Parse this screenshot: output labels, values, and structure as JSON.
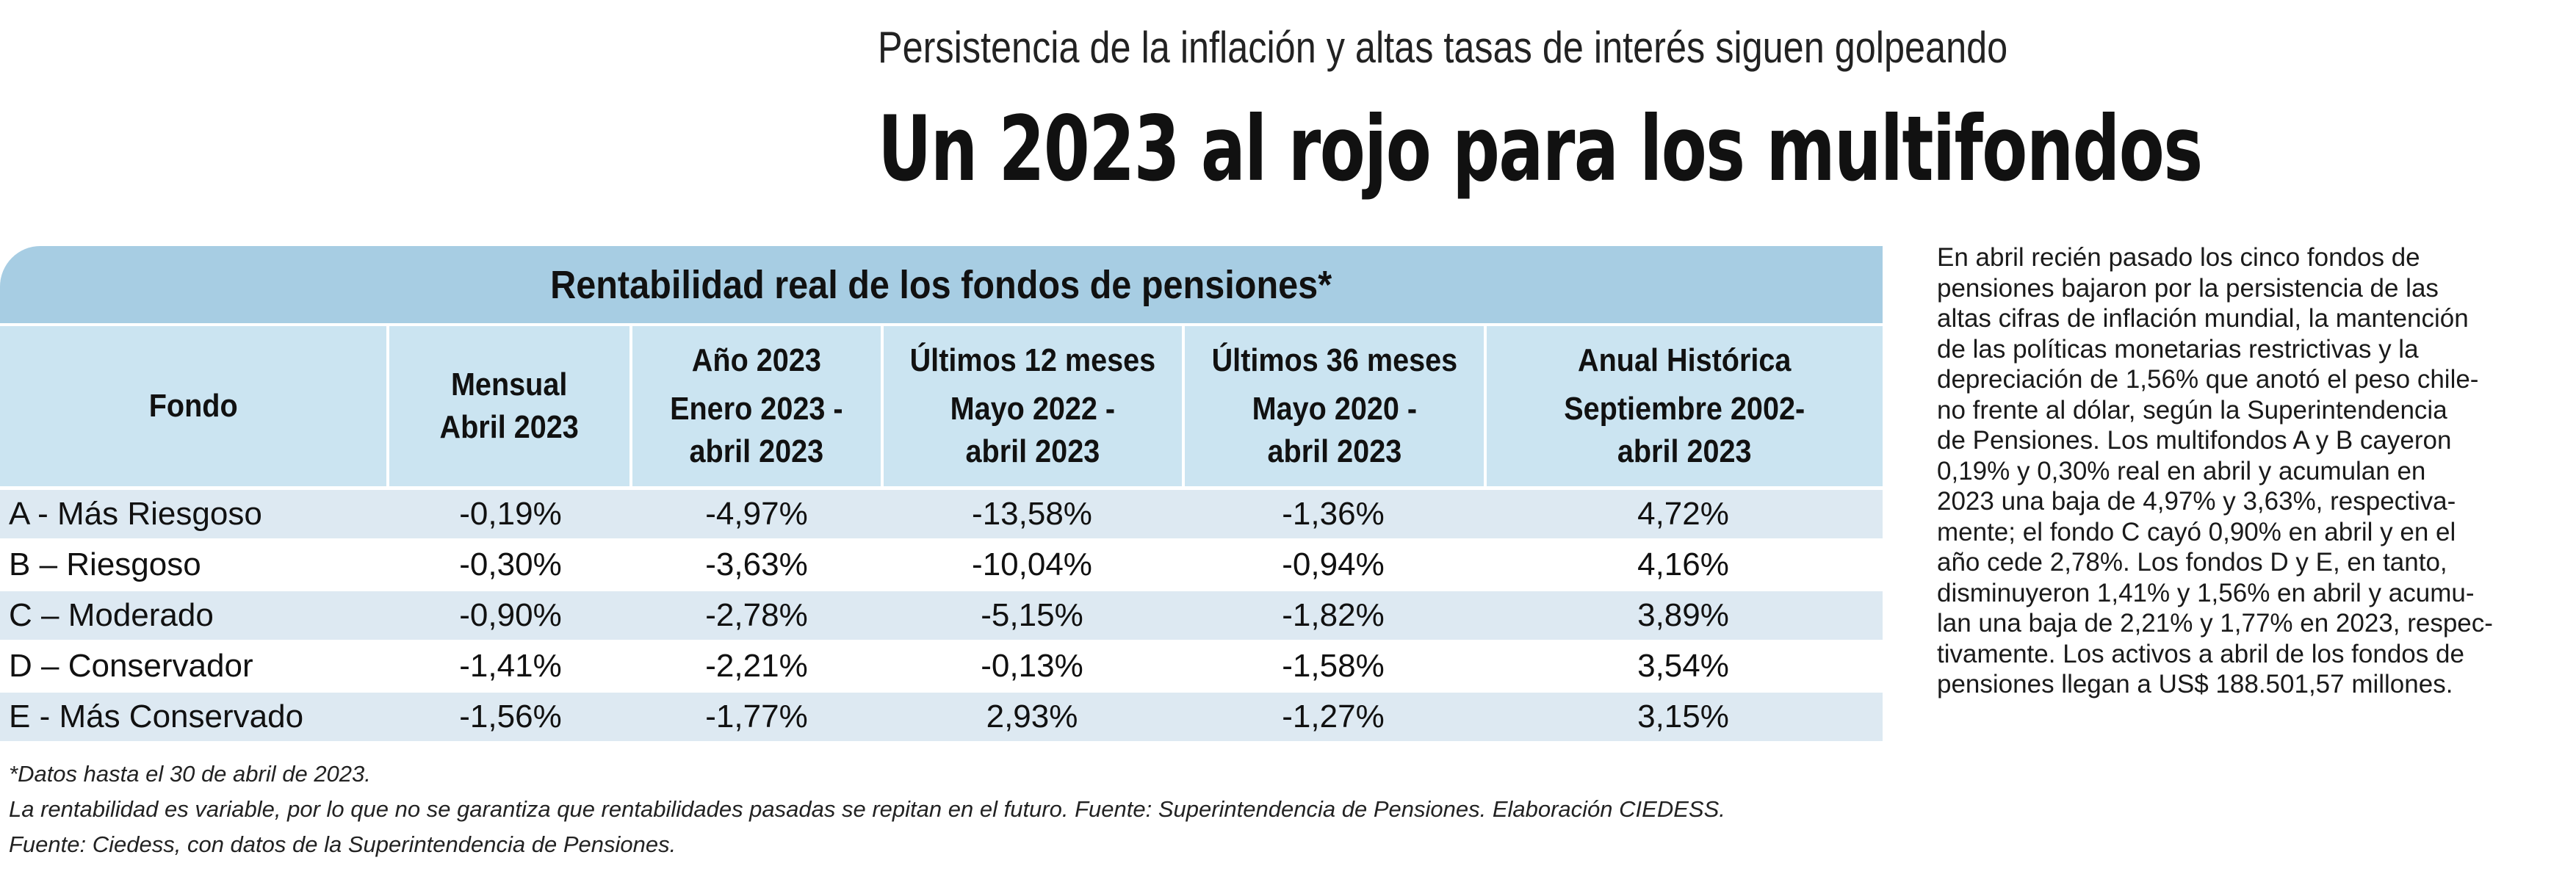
{
  "header": {
    "kicker": "Persistencia de la inflación y altas tasas de interés siguen golpeando",
    "headline": "Un 2023 al rojo para los multifondos"
  },
  "table": {
    "title": "Rentabilidad real de los fondos de pensiones*",
    "columns": [
      {
        "label": "Fondo",
        "sub": ""
      },
      {
        "label": "Mensual\nAbril 2023",
        "sub": ""
      },
      {
        "label": "Año 2023",
        "sub": "Enero 2023 -\nabril 2023"
      },
      {
        "label": "Últimos 12 meses",
        "sub": "Mayo 2022 -\nabril 2023"
      },
      {
        "label": "Últimos 36 meses",
        "sub": "Mayo 2020 -\nabril 2023"
      },
      {
        "label": "Anual Histórica",
        "sub": "Septiembre 2002-\nabril 2023"
      }
    ],
    "rows": [
      [
        "A - Más Riesgoso",
        "-0,19%",
        "-4,97%",
        "-13,58%",
        "-1,36%",
        "4,72%"
      ],
      [
        "B – Riesgoso",
        "-0,30%",
        "-3,63%",
        "-10,04%",
        "-0,94%",
        "4,16%"
      ],
      [
        "C – Moderado",
        "-0,90%",
        "-2,78%",
        "-5,15%",
        "-1,82%",
        "3,89%"
      ],
      [
        "D – Conservador",
        "-1,41%",
        "-2,21%",
        "-0,13%",
        "-1,58%",
        "3,54%"
      ],
      [
        "E - Más Conservado",
        "-1,56%",
        "-1,77%",
        "2,93%",
        "-1,27%",
        "3,15%"
      ]
    ],
    "row_shading": [
      "shade",
      "plain",
      "shade",
      "plain",
      "shade"
    ]
  },
  "notes": {
    "line1": "*Datos hasta el 30 de abril de 2023.",
    "line2": " La rentabilidad es variable, por lo que no se garantiza que rentabilidades pasadas se repitan en el futuro. Fuente: Superintendencia de Pensiones. Elaboración CIEDESS.",
    "line3": "Fuente: Ciedess, con datos de la Superintendencia de Pensiones."
  },
  "article": {
    "lines": [
      "En abril recién pasado los cinco fondos de",
      "pensiones bajaron por la persistencia de las",
      "altas cifras de inflación mundial, la mantención",
      "de las políticas monetarias restrictivas y la",
      "depreciación de 1,56% que anotó el peso chile-",
      "no frente al dólar, según la Superintendencia",
      "de Pensiones. Los multifondos A y B cayeron",
      "0,19% y 0,30% real en abril y acumulan en",
      "2023 una baja de 4,97% y 3,63%, respectiva-",
      "mente; el fondo C cayó 0,90% en abril y en el",
      "año cede 2,78%. Los fondos D y E, en tanto,",
      "disminuyeron 1,41% y 1,56% en abril y acumu-",
      "lan una baja de 2,21% y 1,77% en 2023, respec-",
      "tivamente. Los activos a abril de los fondos de",
      "pensiones llegan a US$ 188.501,57 millones."
    ]
  },
  "colors": {
    "title_band": "#a7cde3",
    "header_band": "#cbe4f1",
    "row_shade": "#dde9f2"
  }
}
